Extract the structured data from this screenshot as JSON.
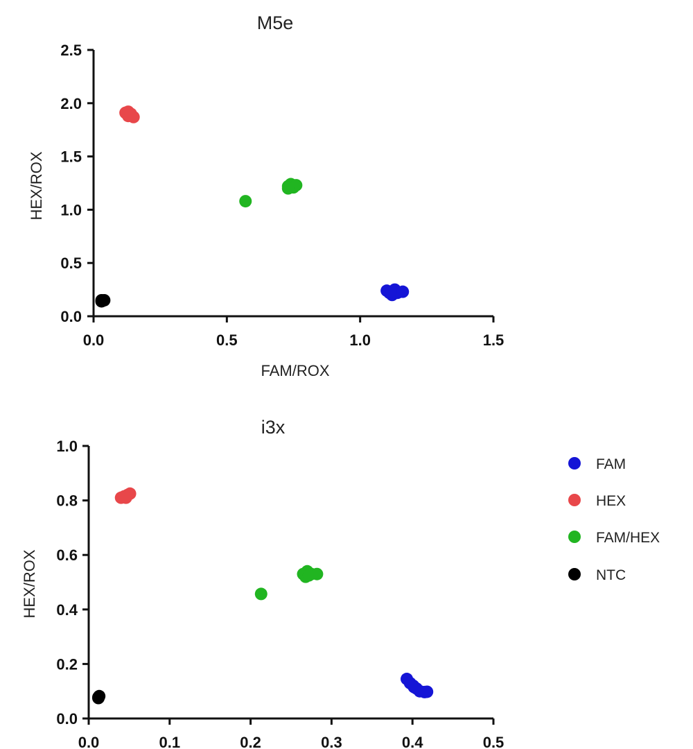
{
  "chart_data": [
    {
      "type": "scatter",
      "title": "M5e",
      "xlabel": "FAM/ROX",
      "ylabel": "HEX/ROX",
      "xlim": [
        0,
        1.5
      ],
      "ylim": [
        0,
        2.5
      ],
      "xticks": [
        "0.0",
        "0.5",
        "1.0",
        "1.5"
      ],
      "yticks": [
        "0.0",
        "0.5",
        "1.0",
        "1.5",
        "2.0",
        "2.5"
      ],
      "series": [
        {
          "name": "FAM",
          "color": "#1515d6",
          "points": [
            [
              1.1,
              0.24
            ],
            [
              1.11,
              0.22
            ],
            [
              1.12,
              0.2
            ],
            [
              1.13,
              0.25
            ],
            [
              1.14,
              0.22
            ],
            [
              1.12,
              0.23
            ],
            [
              1.16,
              0.23
            ]
          ]
        },
        {
          "name": "HEX",
          "color": "#e8474a",
          "points": [
            [
              0.12,
              1.91
            ],
            [
              0.13,
              1.88
            ],
            [
              0.14,
              1.9
            ],
            [
              0.15,
              1.87
            ],
            [
              0.13,
              1.92
            ],
            [
              0.14,
              1.89
            ]
          ]
        },
        {
          "name": "FAM/HEX",
          "color": "#21b521",
          "points": [
            [
              0.57,
              1.08
            ],
            [
              0.73,
              1.22
            ],
            [
              0.74,
              1.24
            ],
            [
              0.75,
              1.21
            ],
            [
              0.76,
              1.23
            ],
            [
              0.74,
              1.21
            ],
            [
              0.73,
              1.2
            ]
          ]
        },
        {
          "name": "NTC",
          "color": "#000000",
          "points": [
            [
              0.03,
              0.14
            ],
            [
              0.04,
              0.15
            ],
            [
              0.03,
              0.15
            ]
          ]
        }
      ]
    },
    {
      "type": "scatter",
      "title": "i3x",
      "xlabel": "",
      "ylabel": "HEX/ROX",
      "xlim": [
        0,
        0.5
      ],
      "ylim": [
        0,
        1.0
      ],
      "xticks": [
        "0.0",
        "0.1",
        "0.2",
        "0.3",
        "0.4",
        "0.5"
      ],
      "yticks": [
        "0.0",
        "0.2",
        "0.4",
        "0.6",
        "0.8",
        "1.0"
      ],
      "series": [
        {
          "name": "FAM",
          "color": "#1515d6",
          "points": [
            [
              0.393,
              0.145
            ],
            [
              0.397,
              0.13
            ],
            [
              0.401,
              0.12
            ],
            [
              0.405,
              0.11
            ],
            [
              0.409,
              0.1
            ],
            [
              0.415,
              0.097
            ],
            [
              0.418,
              0.098
            ],
            [
              0.402,
              0.115
            ]
          ]
        },
        {
          "name": "HEX",
          "color": "#e8474a",
          "points": [
            [
              0.04,
              0.81
            ],
            [
              0.044,
              0.815
            ],
            [
              0.048,
              0.82
            ],
            [
              0.051,
              0.825
            ],
            [
              0.046,
              0.81
            ]
          ]
        },
        {
          "name": "FAM/HEX",
          "color": "#21b521",
          "points": [
            [
              0.213,
              0.457
            ],
            [
              0.265,
              0.53
            ],
            [
              0.27,
              0.54
            ],
            [
              0.275,
              0.53
            ],
            [
              0.282,
              0.53
            ],
            [
              0.268,
              0.52
            ],
            [
              0.272,
              0.525
            ]
          ]
        },
        {
          "name": "NTC",
          "color": "#000000",
          "points": [
            [
              0.012,
              0.075
            ],
            [
              0.013,
              0.082
            ],
            [
              0.012,
              0.078
            ]
          ]
        }
      ]
    }
  ],
  "legend": [
    {
      "label": "FAM",
      "color": "#1515d6"
    },
    {
      "label": "HEX",
      "color": "#e8474a"
    },
    {
      "label": "FAM/HEX",
      "color": "#21b521"
    },
    {
      "label": "NTC",
      "color": "#000000"
    }
  ]
}
